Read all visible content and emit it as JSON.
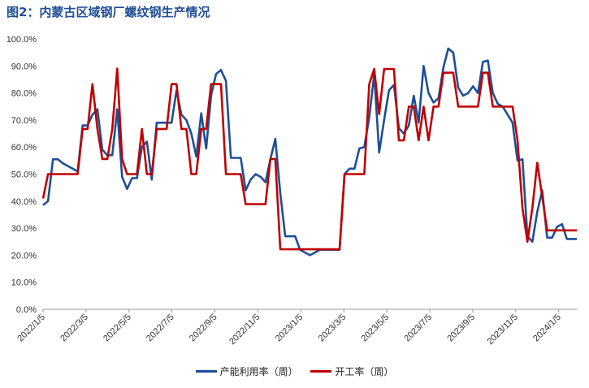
{
  "chart_data": {
    "type": "line",
    "title": "图2：内蒙古区域钢厂螺纹钢生产情况",
    "ylim": [
      0,
      100
    ],
    "y_ticks": [
      "0.0%",
      "10.0%",
      "20.0%",
      "30.0%",
      "40.0%",
      "50.0%",
      "60.0%",
      "70.0%",
      "80.0%",
      "90.0%",
      "100.0%"
    ],
    "x_ticks": [
      "2022/1/5",
      "2022/3/5",
      "2022/5/5",
      "2022/7/5",
      "2022/9/5",
      "2022/11/5",
      "2023/1/5",
      "2023/3/5",
      "2023/5/5",
      "2023/7/5",
      "2023/9/5",
      "2023/11/5",
      "2024/1/5"
    ],
    "grid": false,
    "legend_position": "bottom",
    "series": [
      {
        "name": "产能利用率（周）",
        "color": "#1f4e96",
        "values": [
          38.5,
          40,
          55.5,
          55.5,
          54,
          53,
          52,
          51,
          68,
          68,
          72,
          74,
          59,
          57,
          57,
          74,
          49,
          44.5,
          48.5,
          48.5,
          60,
          62,
          48,
          69,
          69,
          69,
          69,
          81,
          72,
          70,
          65,
          56.5,
          72.5,
          59.5,
          79,
          87,
          88.5,
          84.5,
          56,
          56,
          56,
          44,
          48,
          50,
          49,
          47,
          55.5,
          63,
          43,
          27,
          27,
          27,
          22,
          21,
          20,
          21,
          22,
          22,
          22,
          22,
          22,
          50,
          52,
          52,
          59.5,
          60,
          71,
          87,
          58,
          70,
          81,
          83,
          67,
          65,
          68,
          79,
          69,
          90,
          80,
          76.5,
          78,
          89.5,
          96.5,
          95,
          82,
          79,
          80,
          82.5,
          80,
          91.5,
          92,
          80,
          76,
          75,
          72,
          69,
          55,
          55.5,
          27,
          25,
          36,
          44,
          26.5,
          26.5,
          30.5,
          31.5,
          26,
          26,
          26
        ]
      },
      {
        "name": "开工率（周）",
        "color": "#c00000",
        "values": [
          41,
          50,
          50,
          50,
          50,
          50,
          50,
          50,
          66.7,
          66.7,
          83.3,
          66.7,
          55.6,
          55.6,
          66.7,
          89,
          55.6,
          50,
          50,
          50,
          66.7,
          50,
          50,
          66.7,
          66.7,
          66.7,
          83.3,
          83.3,
          66.7,
          66.7,
          50,
          50,
          66.7,
          66.7,
          83.3,
          83.3,
          83.3,
          50,
          50,
          50,
          50,
          38.9,
          38.9,
          38.9,
          38.9,
          38.9,
          55.6,
          55.6,
          22.2,
          22.2,
          22.2,
          22.2,
          22.2,
          22.2,
          22.2,
          22.2,
          22.2,
          22.2,
          22.2,
          22.2,
          22.2,
          50,
          50,
          50,
          50,
          50,
          83.3,
          88.9,
          72.2,
          88.9,
          88.9,
          88.9,
          62.5,
          62.5,
          75,
          75,
          62.5,
          75,
          62.5,
          75,
          75,
          87.5,
          87.5,
          87.5,
          75,
          75,
          75,
          75,
          75,
          87.5,
          87.5,
          75,
          75,
          75,
          75,
          75,
          62.5,
          37.5,
          25,
          37.5,
          54.2,
          41.7,
          29.2,
          29.2,
          29.2,
          29.2,
          29.2,
          29.2,
          29.2
        ]
      }
    ]
  }
}
